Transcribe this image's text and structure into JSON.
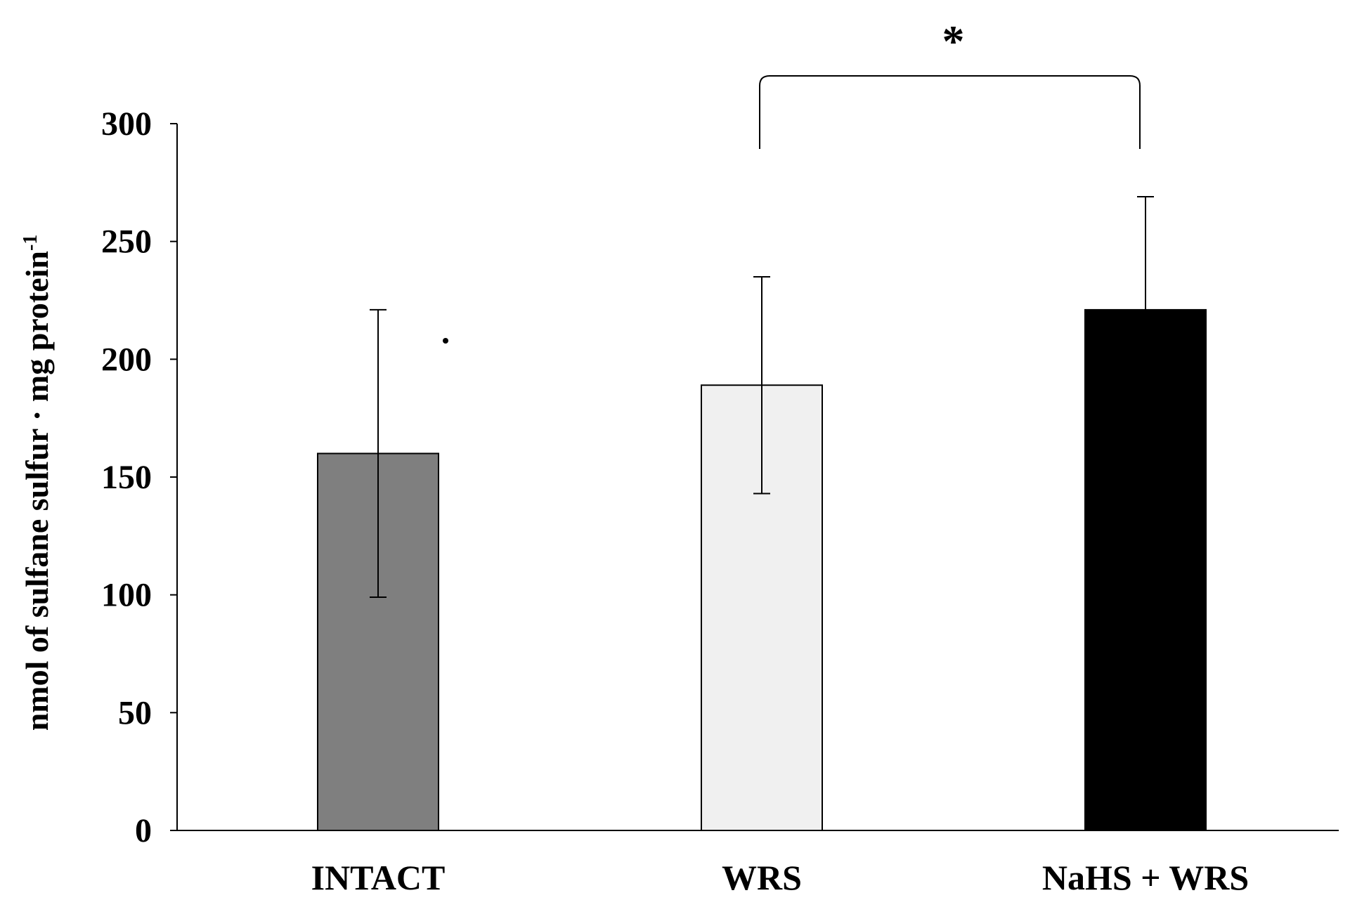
{
  "chart_data": {
    "type": "bar",
    "title": "",
    "xlabel": "",
    "ylabel": {
      "main": "nmol of sulfane sulfur · mg protein",
      "superscript": "-1"
    },
    "ylim": [
      0,
      300
    ],
    "yticks": [
      0,
      50,
      100,
      150,
      200,
      250,
      300
    ],
    "grid": false,
    "categories": [
      "INTACT",
      "WRS",
      "NaHS + WRS"
    ],
    "values": [
      160,
      189,
      221
    ],
    "errors": [
      61,
      46,
      48
    ],
    "colors": [
      "#7f7f7f",
      "#f0f0f0",
      "#000000"
    ],
    "significance": {
      "label": "*",
      "from": "WRS",
      "to": "NaHS + WRS"
    }
  }
}
